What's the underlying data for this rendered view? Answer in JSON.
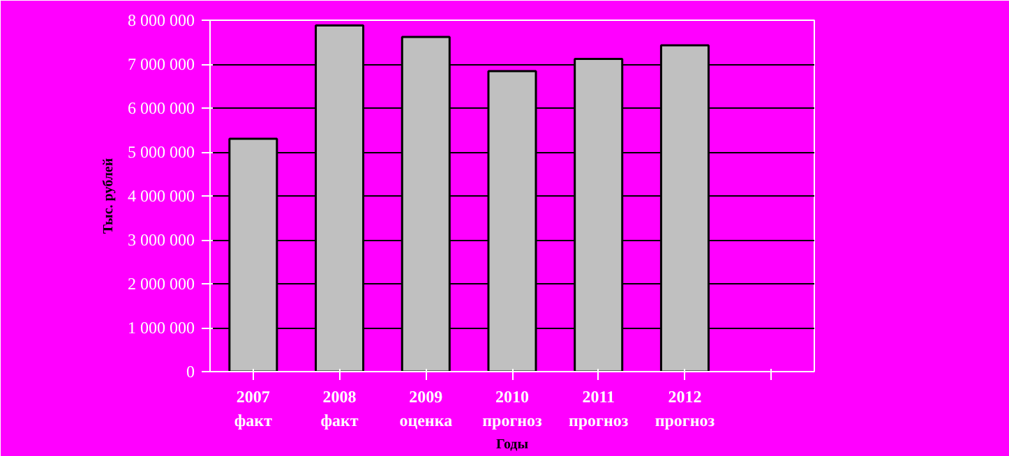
{
  "chart_data": {
    "type": "bar",
    "ylabel": "Тыс. рублей",
    "xlabel": "Годы",
    "categories": [
      "2007\nфакт",
      "2008\nфакт",
      "2009\nоценка",
      "2010\nпрогноз",
      "2011\nпрогноз",
      "2012\nпрогноз",
      null
    ],
    "values": [
      5300000,
      7880000,
      7620000,
      6840000,
      7120000,
      7430000,
      null
    ],
    "color": "#c0c0c0",
    "ylim": [
      0,
      8000000
    ],
    "yticks": [
      0,
      {
        "value": 1000000,
        "label": "1 000 000"
      },
      {
        "value": 2000000,
        "label": "2 000 000"
      },
      {
        "value": 3000000,
        "label": "3 000 000"
      },
      {
        "value": 4000000,
        "label": "4 000 000"
      },
      {
        "value": 5000000,
        "label": "5 000 000"
      },
      {
        "value": 6000000,
        "label": "6 000 000"
      },
      {
        "value": 7000000,
        "label": "7 000 000"
      },
      {
        "value": 8000000,
        "label": "8 000 000"
      }
    ],
    "grid": "y"
  }
}
